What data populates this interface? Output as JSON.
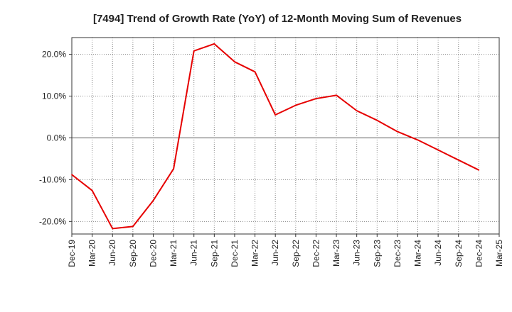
{
  "chart_data": {
    "type": "line",
    "title": "[7494]  Trend of Growth Rate (YoY) of 12-Month Moving Sum of Revenues",
    "xlabel": "",
    "ylabel": "",
    "ylim": [
      -23,
      24
    ],
    "y_ticks": [
      -20,
      -10,
      0,
      10,
      20
    ],
    "y_tick_labels": [
      "-20.0%",
      "-10.0%",
      "0.0%",
      "10.0%",
      "20.0%"
    ],
    "x_tick_labels": [
      "Dec-19",
      "Mar-20",
      "Jun-20",
      "Sep-20",
      "Dec-20",
      "Mar-21",
      "Jun-21",
      "Sep-21",
      "Dec-21",
      "Mar-22",
      "Jun-22",
      "Sep-22",
      "Dec-22",
      "Mar-23",
      "Jun-23",
      "Sep-23",
      "Dec-23",
      "Mar-24",
      "Jun-24",
      "Sep-24",
      "Dec-24",
      "Mar-25"
    ],
    "grid": true,
    "line_color": "#e60000",
    "series": [
      {
        "x": [
          "Dec-19",
          "Mar-20",
          "Jun-20",
          "Sep-20",
          "Dec-20",
          "Mar-21",
          "Jun-21",
          "Sep-21",
          "Dec-21",
          "Mar-22",
          "Jun-22",
          "Sep-22",
          "Dec-22",
          "Mar-23",
          "Jun-23",
          "Sep-23",
          "Dec-23",
          "Mar-24",
          "Jun-24",
          "Sep-24",
          "Dec-24"
        ],
        "values": [
          -8.8,
          -12.6,
          -21.7,
          -21.2,
          -15.0,
          -7.4,
          20.8,
          22.5,
          18.2,
          15.8,
          5.5,
          7.8,
          9.4,
          10.2,
          6.5,
          4.2,
          1.5,
          -0.5,
          -2.9,
          -5.3,
          -7.7
        ]
      }
    ]
  }
}
